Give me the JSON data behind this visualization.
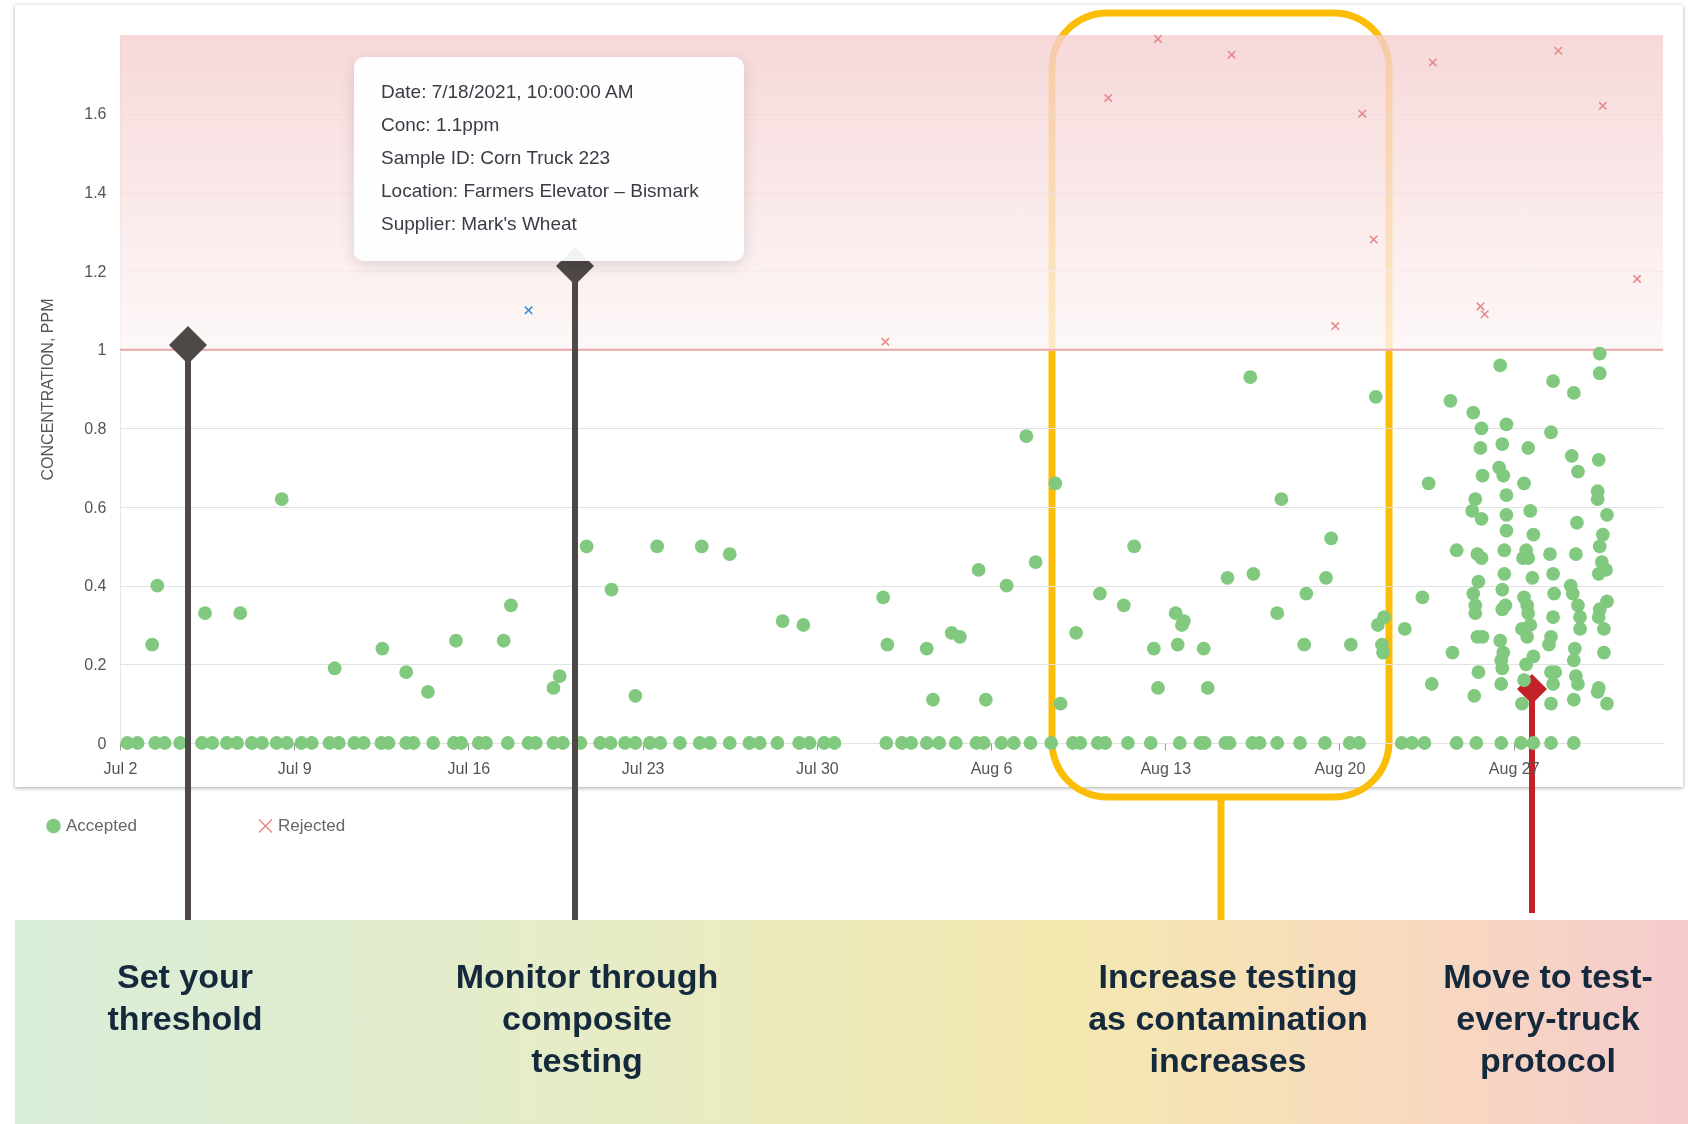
{
  "chart_data": {
    "type": "scatter",
    "ylabel": "CONCENTRATION, PPM",
    "xlim": [
      "2021-07-02",
      "2021-09-02"
    ],
    "xticks": [
      {
        "value": "2021-07-02",
        "label": "Jul 2"
      },
      {
        "value": "2021-07-09",
        "label": "Jul 9"
      },
      {
        "value": "2021-07-16",
        "label": "Jul 16"
      },
      {
        "value": "2021-07-23",
        "label": "Jul 23"
      },
      {
        "value": "2021-07-30",
        "label": "Jul 30"
      },
      {
        "value": "2021-08-06",
        "label": "Aug 6"
      },
      {
        "value": "2021-08-13",
        "label": "Aug 13"
      },
      {
        "value": "2021-08-20",
        "label": "Aug 20"
      },
      {
        "value": "2021-08-27",
        "label": "Aug 27"
      }
    ],
    "ylim": [
      0,
      1.8
    ],
    "yticks": [
      0,
      0.2,
      0.4,
      0.6,
      0.8,
      1,
      1.2,
      1.4,
      1.6
    ],
    "grid": "y",
    "legend": "bottom left",
    "bands": [
      {
        "axis": "y",
        "from": 1,
        "to": 1.8,
        "color": "#f5cfd0"
      }
    ],
    "ref_lines": [
      {
        "axis": "y",
        "value": 1,
        "color": "#f0a7a8"
      }
    ],
    "annotations": [
      "Date: 7/18/2021, 10:00:00 AM\nConc: 1.1ppm\nSample ID: Corn Truck 223\nLocation: Farmers Elevator – Bismark\nSupplier: Mark's Wheat",
      "Set your\nthreshold",
      "Monitor through\ncomposite\ntesting",
      "Increase testing\nas contamination\nincreases",
      "Move to test-\nevery-truck\nprotocol"
    ],
    "series": [
      {
        "name": "Accepted",
        "color": "#80c97f",
        "marker": "circle",
        "x": [
          "2021-07-03T07:00",
          "2021-07-03T12:00",
          "2021-07-05T10:00",
          "2021-07-06T20:00",
          "2021-07-08T12:00",
          "2021-07-10T15:00",
          "2021-07-12T13:00",
          "2021-07-13T12:00",
          "2021-07-14T09:00",
          "2021-07-15T12:00",
          "2021-07-17T10:00",
          "2021-07-17T17:00",
          "2021-07-19T10:00",
          "2021-07-19T16:00",
          "2021-07-20T18:00",
          "2021-07-21T18:00",
          "2021-07-22T17:00",
          "2021-07-23T14:00",
          "2021-07-25T09:00",
          "2021-07-26T12:00",
          "2021-07-28T15:00",
          "2021-07-29T11:00",
          "2021-08-01T16:00",
          "2021-08-01T20:00",
          "2021-08-03T10:00",
          "2021-08-03T16:00",
          "2021-08-04T10:00",
          "2021-08-04T18:00",
          "2021-08-05T12:00",
          "2021-08-05T19:00",
          "2021-08-06T15:00",
          "2021-08-07T10:00",
          "2021-08-07T19:00",
          "2021-08-08T14:00",
          "2021-08-08T19:00",
          "2021-08-09T10:00",
          "2021-08-10T09:00",
          "2021-08-11T08:00",
          "2021-08-11T18:00",
          "2021-08-12T13:00",
          "2021-08-12T17:00",
          "2021-08-13T10:00",
          "2021-08-13T12:00",
          "2021-08-13T16:00",
          "2021-08-13T18:00",
          "2021-08-14T13:00",
          "2021-08-14T17:00",
          "2021-08-15T12:00",
          "2021-08-16T10:00",
          "2021-08-16T13:00",
          "2021-08-17T12:00",
          "2021-08-17T16:00",
          "2021-08-18T14:00",
          "2021-08-18T16:00",
          "2021-08-19T11:00",
          "2021-08-19T16:00",
          "2021-08-20T11:00",
          "2021-08-21T11:00",
          "2021-08-21T13:00",
          "2021-08-21T19:00",
          "2021-08-21T17:00",
          "2021-08-21T18:00",
          "2021-08-22T15:00",
          "2021-08-23T08:00",
          "2021-08-23T14:00",
          "2021-08-23T17:00",
          "2021-08-24T11:00",
          "2021-08-24T13:00",
          "2021-08-24T17:00",
          "2021-08-25T09:00",
          "2021-08-25T11:00",
          "2021-08-25T08:00",
          "2021-08-25T17:00",
          "2021-08-25T16:00",
          "2021-08-25T18:00",
          "2021-08-25T17:00",
          "2021-08-25T13:00",
          "2021-08-25T17:00",
          "2021-08-25T14:00",
          "2021-08-25T09:00",
          "2021-08-25T11:00",
          "2021-08-25T11:00",
          "2021-08-25T13:00",
          "2021-08-25T18:00",
          "2021-08-25T14:00",
          "2021-08-25T10:00",
          "2021-08-26T11:00",
          "2021-08-26T17:00",
          "2021-08-26T13:00",
          "2021-08-26T10:00",
          "2021-08-26T14:00",
          "2021-08-26T17:00",
          "2021-08-26T17:00",
          "2021-08-26T17:00",
          "2021-08-26T15:00",
          "2021-08-26T15:00",
          "2021-08-26T13:00",
          "2021-08-26T16:00",
          "2021-08-26T13:00",
          "2021-08-26T11:00",
          "2021-08-26T14:00",
          "2021-08-26T12:00",
          "2021-08-26T13:00",
          "2021-08-26T12:00",
          "2021-08-27T14:00",
          "2021-08-27T10:00",
          "2021-08-27T16:00",
          "2021-08-27T19:00",
          "2021-08-27T12:00",
          "2021-08-27T09:00",
          "2021-08-27T14:00",
          "2021-08-27T18:00",
          "2021-08-27T10:00",
          "2021-08-27T13:00",
          "2021-08-27T14:00",
          "2021-08-27T08:00",
          "2021-08-27T16:00",
          "2021-08-27T13:00",
          "2021-08-27T19:00",
          "2021-08-27T12:00",
          "2021-08-27T10:00",
          "2021-08-27T08:00",
          "2021-08-28T14:00",
          "2021-08-28T12:00",
          "2021-08-28T11:00",
          "2021-08-28T14:00",
          "2021-08-28T15:00",
          "2021-08-28T14:00",
          "2021-08-28T12:00",
          "2021-08-28T10:00",
          "2021-08-28T12:00",
          "2021-08-28T16:00",
          "2021-08-28T14:00",
          "2021-08-28T12:00",
          "2021-08-29T10:00",
          "2021-08-29T08:00",
          "2021-08-29T14:00",
          "2021-08-29T13:00",
          "2021-08-29T12:00",
          "2021-08-29T07:00",
          "2021-08-29T09:00",
          "2021-08-29T14:00",
          "2021-08-29T16:00",
          "2021-08-29T16:00",
          "2021-08-29T11:00",
          "2021-08-29T10:00",
          "2021-08-29T12:00",
          "2021-08-29T14:00",
          "2021-08-29T10:00",
          "2021-08-30T11:00",
          "2021-08-30T11:00",
          "2021-08-30T10:00",
          "2021-08-30T09:00",
          "2021-08-30T09:00",
          "2021-08-30T18:00",
          "2021-08-30T14:00",
          "2021-08-30T11:00",
          "2021-08-30T13:00",
          "2021-08-30T17:00",
          "2021-08-30T10:00",
          "2021-08-30T18:00",
          "2021-08-30T11:00",
          "2021-08-30T10:00",
          "2021-08-30T15:00",
          "2021-08-30T15:00",
          "2021-08-30T10:00",
          "2021-08-30T09:00",
          "2021-08-30T18:00",
          "2021-07-02T07:00",
          "2021-07-02T17:00",
          "2021-07-03T10:00",
          "2021-07-03T19:00",
          "2021-07-04T10:00",
          "2021-07-05T07:00",
          "2021-07-05T17:00",
          "2021-07-06T07:00",
          "2021-07-06T17:00",
          "2021-07-07T07:00",
          "2021-07-07T17:00",
          "2021-07-08T07:00",
          "2021-07-08T17:00",
          "2021-07-09T07:00",
          "2021-07-09T17:00",
          "2021-07-10T10:00",
          "2021-07-10T19:00",
          "2021-07-11T10:00",
          "2021-07-11T19:00",
          "2021-07-12T12:00",
          "2021-07-12T19:00",
          "2021-07-13T12:00",
          "2021-07-13T19:00",
          "2021-07-14T14:00",
          "2021-07-15T10:00",
          "2021-07-15T17:00",
          "2021-07-16T10:00",
          "2021-07-16T17:00",
          "2021-07-17T14:00",
          "2021-07-18T10:00",
          "2021-07-18T17:00",
          "2021-07-19T10:00",
          "2021-07-19T19:00",
          "2021-07-20T12:00",
          "2021-07-21T07:00",
          "2021-07-21T17:00",
          "2021-07-22T07:00",
          "2021-07-22T17:00",
          "2021-07-23T07:00",
          "2021-07-23T17:00",
          "2021-07-24T12:00",
          "2021-07-25T07:00",
          "2021-07-25T17:00",
          "2021-07-26T12:00",
          "2021-07-27T07:00",
          "2021-07-27T17:00",
          "2021-07-28T10:00",
          "2021-07-29T07:00",
          "2021-07-29T17:00",
          "2021-07-30T07:00",
          "2021-07-30T17:00",
          "2021-08-01T19:00",
          "2021-08-02T10:00",
          "2021-08-02T19:00",
          "2021-08-03T10:00",
          "2021-08-03T22:00",
          "2021-08-04T14:00",
          "2021-08-05T10:00",
          "2021-08-05T17:00",
          "2021-08-06T10:00",
          "2021-08-06T22:00",
          "2021-08-07T14:00",
          "2021-08-08T10:00",
          "2021-08-09T07:00",
          "2021-08-09T14:00",
          "2021-08-10T07:00",
          "2021-08-10T14:00",
          "2021-08-11T12:00",
          "2021-08-12T10:00",
          "2021-08-13T14:00",
          "2021-08-14T10:00",
          "2021-08-14T14:00",
          "2021-08-15T10:00",
          "2021-08-15T14:00",
          "2021-08-16T12:00",
          "2021-08-16T19:00",
          "2021-08-17T12:00",
          "2021-08-18T10:00",
          "2021-08-19T10:00",
          "2021-08-20T10:00",
          "2021-08-20T19:00",
          "2021-08-22T12:00",
          "2021-08-22T22:00",
          "2021-08-23T10:00",
          "2021-08-24T17:00",
          "2021-08-25T12:00",
          "2021-08-26T12:00",
          "2021-08-27T07:00",
          "2021-08-27T19:00",
          "2021-08-28T12:00",
          "2021-08-29T10:00"
        ],
        "values": [
          0.25,
          0.4,
          0.33,
          0.33,
          0.62,
          0.19,
          0.24,
          0.18,
          0.13,
          0.26,
          0.26,
          0.35,
          0.14,
          0.17,
          0.5,
          0.39,
          0.12,
          0.5,
          0.5,
          0.48,
          0.31,
          0.3,
          0.37,
          0.25,
          0.24,
          0.11,
          0.28,
          0.27,
          0.44,
          0.11,
          0.4,
          0.78,
          0.46,
          0.66,
          0.1,
          0.28,
          0.38,
          0.35,
          0.5,
          0.24,
          0.14,
          0.33,
          0.25,
          0.3,
          0.31,
          0.24,
          0.14,
          0.42,
          0.93,
          0.43,
          0.33,
          0.62,
          0.25,
          0.38,
          0.42,
          0.52,
          0.25,
          0.88,
          0.3,
          0.32,
          0.25,
          0.23,
          0.29,
          0.37,
          0.66,
          0.15,
          0.87,
          0.23,
          0.49,
          0.84,
          0.62,
          0.59,
          0.8,
          0.75,
          0.68,
          0.57,
          0.48,
          0.47,
          0.41,
          0.38,
          0.35,
          0.33,
          0.27,
          0.27,
          0.18,
          0.12,
          0.96,
          0.81,
          0.76,
          0.7,
          0.68,
          0.63,
          0.58,
          0.54,
          0.49,
          0.43,
          0.39,
          0.35,
          0.34,
          0.26,
          0.23,
          0.21,
          0.19,
          0.15,
          0.75,
          0.66,
          0.59,
          0.53,
          0.49,
          0.47,
          0.47,
          0.42,
          0.37,
          0.35,
          0.33,
          0.29,
          0.3,
          0.27,
          0.22,
          0.2,
          0.16,
          0.1,
          0.92,
          0.79,
          0.48,
          0.43,
          0.38,
          0.32,
          0.27,
          0.25,
          0.18,
          0.18,
          0.15,
          0.1,
          0.89,
          0.73,
          0.69,
          0.56,
          0.48,
          0.4,
          0.38,
          0.35,
          0.32,
          0.29,
          0.24,
          0.21,
          0.17,
          0.15,
          0.11,
          0.99,
          0.94,
          0.72,
          0.64,
          0.62,
          0.58,
          0.53,
          0.5,
          0.46,
          0.44,
          0.43,
          0.36,
          0.34,
          0.32,
          0.29,
          0.23,
          0.14,
          0.13,
          0.1,
          0,
          0,
          0,
          0,
          0,
          0,
          0,
          0,
          0,
          0,
          0,
          0,
          0,
          0,
          0,
          0,
          0,
          0,
          0,
          0,
          0,
          0,
          0,
          0,
          0,
          0,
          0,
          0,
          0,
          0,
          0,
          0,
          0,
          0,
          0,
          0,
          0,
          0,
          0,
          0,
          0,
          0,
          0,
          0,
          0,
          0,
          0,
          0,
          0,
          0,
          0,
          0,
          0,
          0,
          0,
          0,
          0,
          0,
          0,
          0,
          0,
          0,
          0,
          0,
          0,
          0,
          0,
          0,
          0,
          0,
          0,
          0,
          0,
          0,
          0,
          0,
          0,
          0,
          0,
          0,
          0,
          0,
          0,
          0,
          0,
          0,
          0,
          0,
          0,
          0,
          0
        ]
      },
      {
        "name": "Rejected",
        "color": "#e68a8b",
        "marker": "cross",
        "x": [
          "2021-07-18T10:00",
          "2021-08-01T18:00",
          "2021-08-10T17:00",
          "2021-08-12T17:00",
          "2021-08-15T16:00",
          "2021-08-20T22:00",
          "2021-08-21T09:00",
          "2021-08-19T20:00",
          "2021-08-23T18:00",
          "2021-08-28T19:00",
          "2021-08-30T14:00",
          "2021-08-31T23:00",
          "2021-08-25T16:00",
          "2021-08-25T20:00"
        ],
        "values": [
          1.1,
          1.02,
          1.64,
          1.79,
          1.75,
          1.6,
          1.28,
          1.06,
          1.73,
          1.76,
          1.62,
          1.18,
          1.11,
          1.09
        ],
        "colors": [
          "#3d8fd6",
          "#e68a8b",
          "#e68a8b",
          "#e68a8b",
          "#e68a8b",
          "#e68a8b",
          "#e68a8b",
          "#e68a8b",
          "#e68a8b",
          "#e68a8b",
          "#e68a8b",
          "#e68a8b",
          "#e68a8b",
          "#e68a8b"
        ]
      }
    ]
  }
}
